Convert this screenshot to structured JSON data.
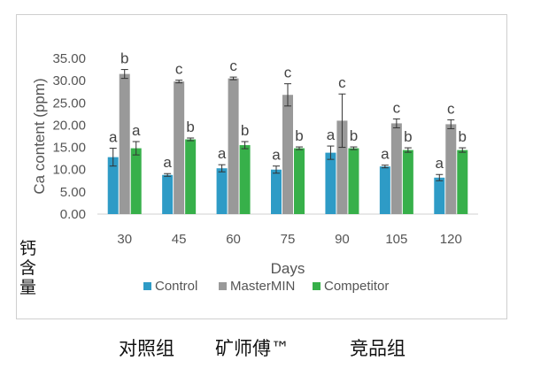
{
  "chart_data": {
    "type": "bar",
    "title": "",
    "xlabel": "Days",
    "ylabel": "Ca content (ppm)",
    "ylim": [
      0,
      35
    ],
    "yticks": [
      "0.00",
      "5.00",
      "10.00",
      "15.00",
      "20.00",
      "25.00",
      "30.00",
      "35.00"
    ],
    "categories": [
      "30",
      "45",
      "60",
      "75",
      "90",
      "105",
      "120"
    ],
    "legend_position": "bottom",
    "series": [
      {
        "name": "Control",
        "color": "#2e9bc6",
        "values": [
          12.8,
          8.8,
          10.3,
          10.0,
          13.8,
          10.7,
          8.2
        ],
        "errors": [
          2.0,
          0.3,
          0.8,
          0.8,
          1.5,
          0.3,
          0.7
        ],
        "labels": [
          "a",
          "a",
          "a",
          "a",
          "a",
          "a",
          "a"
        ]
      },
      {
        "name": "MasterMIN",
        "color": "#999999",
        "values": [
          31.5,
          29.8,
          30.5,
          26.8,
          21.0,
          20.4,
          20.2
        ],
        "errors": [
          1.0,
          0.3,
          0.3,
          2.5,
          6.0,
          1.0,
          1.0
        ],
        "labels": [
          "b",
          "c",
          "c",
          "c",
          "c",
          "c",
          "c"
        ]
      },
      {
        "name": "Competitor",
        "color": "#37b04a",
        "values": [
          14.8,
          16.8,
          15.5,
          14.8,
          14.8,
          14.4,
          14.4
        ],
        "errors": [
          1.5,
          0.3,
          0.8,
          0.3,
          0.3,
          0.5,
          0.5
        ],
        "labels": [
          "a",
          "b",
          "b",
          "b",
          "b",
          "b",
          "b"
        ]
      }
    ]
  },
  "annotations": {
    "cn_ylabel": "钙含量",
    "cn_series_labels": [
      "对照组",
      "矿师傅™",
      "竞品组"
    ]
  }
}
